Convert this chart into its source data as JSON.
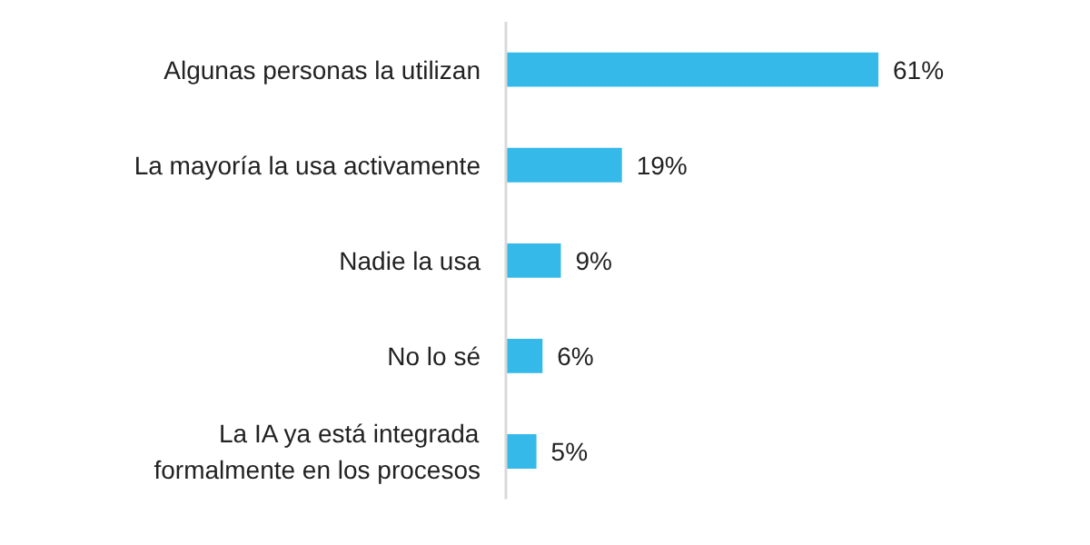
{
  "chart_data": {
    "type": "bar",
    "orientation": "horizontal",
    "categories": [
      "Algunas personas la utilizan",
      "La mayoría la usa activamente",
      "Nadie la usa",
      "No lo sé",
      "La IA ya está integrada\nformalmente en los procesos"
    ],
    "values": [
      61,
      19,
      9,
      6,
      5
    ],
    "value_labels": [
      "61%",
      "19%",
      "9%",
      "6%",
      "5%"
    ],
    "color": "#35b9e9"
  }
}
